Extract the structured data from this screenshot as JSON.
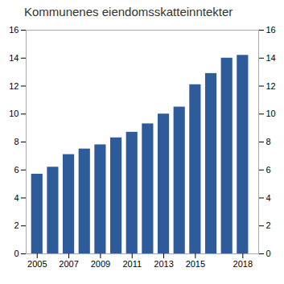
{
  "chart_data": {
    "type": "bar",
    "title": "Kommunenes eiendomsskatteinntekter",
    "x": [
      2005,
      2006,
      2007,
      2008,
      2009,
      2010,
      2011,
      2012,
      2013,
      2014,
      2015,
      2016,
      2017,
      2018
    ],
    "values": [
      5.7,
      6.2,
      7.1,
      7.5,
      7.8,
      8.3,
      8.7,
      9.3,
      10.0,
      10.5,
      12.1,
      12.9,
      14.0,
      14.2
    ],
    "color": "#2E5B9A",
    "xlim": [
      2004.3,
      2019.0
    ],
    "xticks": [
      2005,
      2007,
      2009,
      2011,
      2013,
      2015,
      2018
    ],
    "ylim": [
      0,
      16
    ],
    "yticks": [
      0,
      2,
      4,
      6,
      8,
      10,
      12,
      14,
      16
    ],
    "y2lim": [
      0,
      16
    ],
    "y2ticks": [
      0,
      2,
      4,
      6,
      8,
      10,
      12,
      14,
      16
    ],
    "grid": false
  }
}
